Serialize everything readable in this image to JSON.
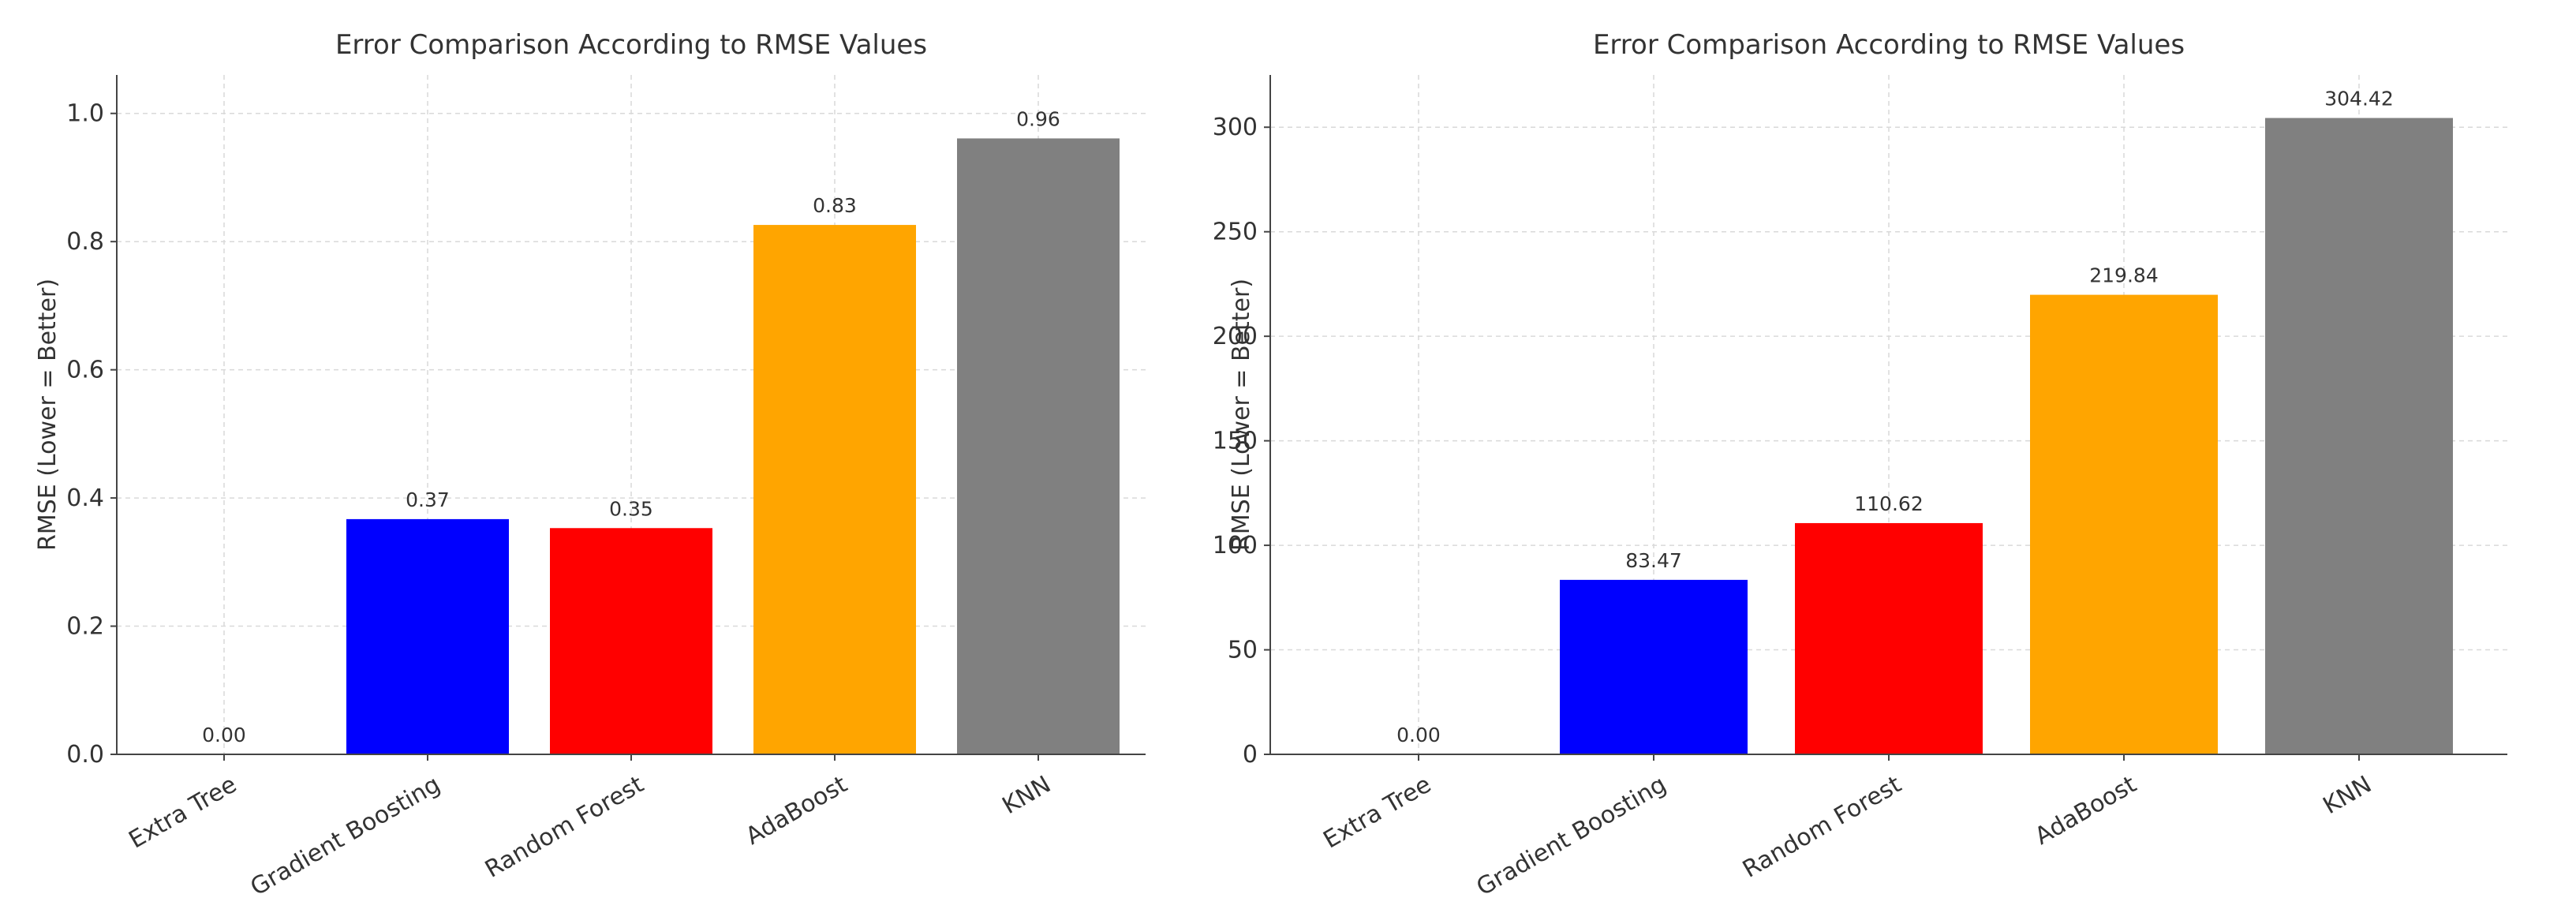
{
  "chart_data": [
    {
      "type": "bar",
      "title": "Error Comparison According to RMSE Values",
      "xlabel": "",
      "ylabel": "RMSE (Lower = Better)",
      "ylim": [
        0,
        1.06
      ],
      "yticks": [
        "0.0",
        "0.2",
        "0.4",
        "0.6",
        "0.8",
        "1.0"
      ],
      "ytick_values": [
        0,
        0.2,
        0.4,
        0.6,
        0.8,
        1.0
      ],
      "grid": true,
      "categories": [
        "Extra Tree",
        "Gradient Boosting",
        "Random Forest",
        "AdaBoost",
        "KNN"
      ],
      "values": [
        0.0,
        0.367,
        0.353,
        0.826,
        0.961
      ],
      "value_labels": [
        "0.00",
        "0.37",
        "0.35",
        "0.83",
        "0.96"
      ],
      "colors": [
        "#ffffff",
        "#0000ff",
        "#ff0000",
        "#ffa500",
        "#808080"
      ]
    },
    {
      "type": "bar",
      "title": "Error Comparison According to RMSE Values",
      "xlabel": "",
      "ylabel": "RMSE (Lower = Better)",
      "ylim": [
        0,
        325
      ],
      "yticks": [
        "0",
        "50",
        "100",
        "150",
        "200",
        "250",
        "300"
      ],
      "ytick_values": [
        0,
        50,
        100,
        150,
        200,
        250,
        300
      ],
      "grid": true,
      "categories": [
        "Extra Tree",
        "Gradient Boosting",
        "Random Forest",
        "AdaBoost",
        "KNN"
      ],
      "values": [
        0.0,
        83.47,
        110.62,
        219.84,
        304.42
      ],
      "value_labels": [
        "0.00",
        "83.47",
        "110.62",
        "219.84",
        "304.42"
      ],
      "colors": [
        "#ffffff",
        "#0000ff",
        "#ff0000",
        "#ffa500",
        "#808080"
      ]
    }
  ]
}
